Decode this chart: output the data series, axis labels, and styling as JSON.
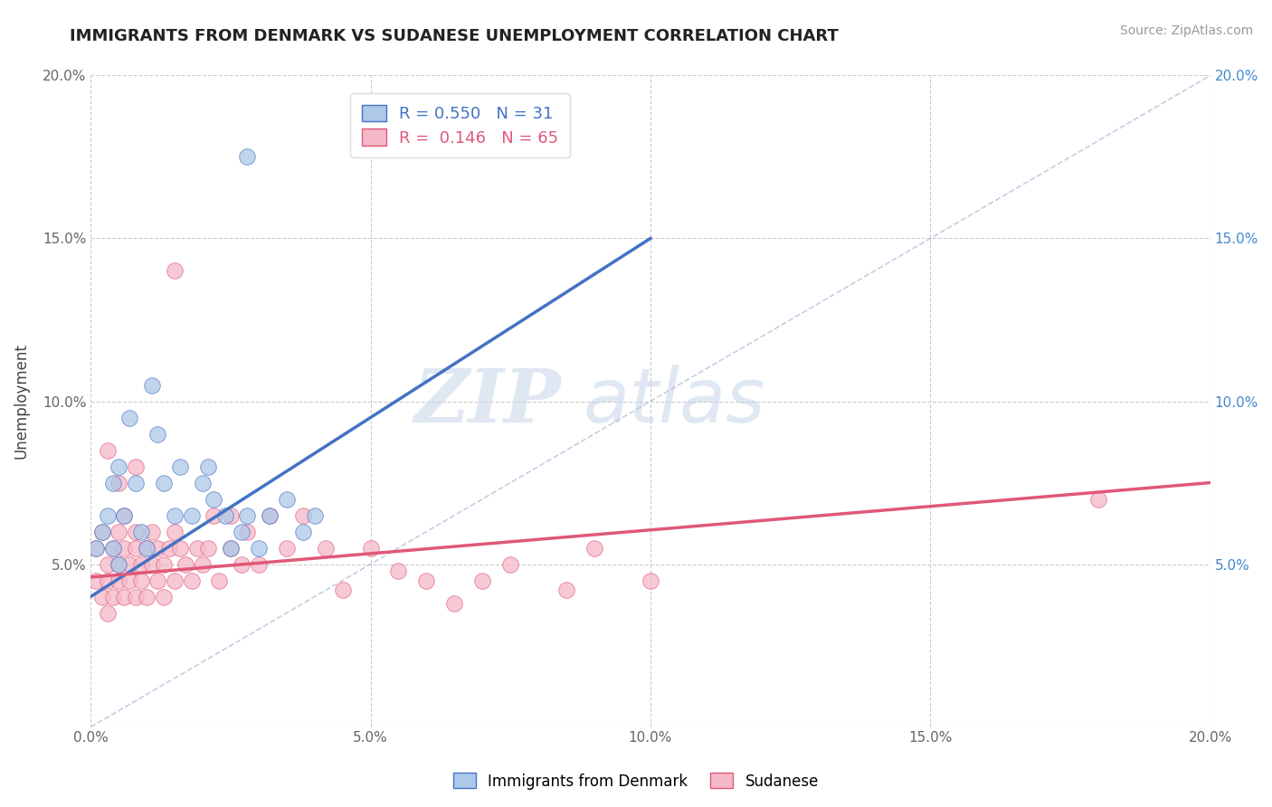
{
  "title": "IMMIGRANTS FROM DENMARK VS SUDANESE UNEMPLOYMENT CORRELATION CHART",
  "source": "Source: ZipAtlas.com",
  "ylabel": "Unemployment",
  "xlim": [
    0,
    0.2
  ],
  "ylim": [
    0,
    0.2
  ],
  "xticks": [
    0.0,
    0.05,
    0.1,
    0.15,
    0.2
  ],
  "yticks": [
    0.0,
    0.05,
    0.1,
    0.15,
    0.2
  ],
  "blue_R": "0.550",
  "blue_N": "31",
  "pink_R": "0.146",
  "pink_N": "65",
  "blue_color": "#adc8e8",
  "blue_line_color": "#4472c4",
  "pink_color": "#f5b8c8",
  "pink_line_color": "#e05878",
  "diag_color": "#b0b8d8",
  "watermark_zip": "ZIP",
  "watermark_atlas": "atlas",
  "blue_scatter_x": [
    0.001,
    0.002,
    0.003,
    0.004,
    0.004,
    0.005,
    0.005,
    0.006,
    0.007,
    0.008,
    0.009,
    0.01,
    0.011,
    0.012,
    0.013,
    0.015,
    0.016,
    0.018,
    0.02,
    0.021,
    0.022,
    0.024,
    0.025,
    0.027,
    0.028,
    0.03,
    0.032,
    0.035,
    0.038,
    0.04,
    0.028
  ],
  "blue_scatter_y": [
    0.055,
    0.06,
    0.065,
    0.055,
    0.075,
    0.05,
    0.08,
    0.065,
    0.095,
    0.075,
    0.06,
    0.055,
    0.105,
    0.09,
    0.075,
    0.065,
    0.08,
    0.065,
    0.075,
    0.08,
    0.07,
    0.065,
    0.055,
    0.06,
    0.065,
    0.055,
    0.065,
    0.07,
    0.06,
    0.065,
    0.175
  ],
  "pink_scatter_x": [
    0.001,
    0.001,
    0.002,
    0.002,
    0.003,
    0.003,
    0.003,
    0.004,
    0.004,
    0.005,
    0.005,
    0.005,
    0.006,
    0.006,
    0.006,
    0.007,
    0.007,
    0.008,
    0.008,
    0.008,
    0.009,
    0.009,
    0.01,
    0.01,
    0.011,
    0.011,
    0.012,
    0.012,
    0.013,
    0.013,
    0.014,
    0.015,
    0.015,
    0.016,
    0.017,
    0.018,
    0.019,
    0.02,
    0.021,
    0.022,
    0.023,
    0.025,
    0.027,
    0.028,
    0.03,
    0.032,
    0.035,
    0.038,
    0.042,
    0.045,
    0.05,
    0.055,
    0.06,
    0.065,
    0.07,
    0.075,
    0.085,
    0.09,
    0.1,
    0.18,
    0.003,
    0.005,
    0.008,
    0.015,
    0.025
  ],
  "pink_scatter_y": [
    0.055,
    0.045,
    0.06,
    0.04,
    0.05,
    0.045,
    0.035,
    0.055,
    0.04,
    0.05,
    0.045,
    0.06,
    0.055,
    0.04,
    0.065,
    0.05,
    0.045,
    0.055,
    0.04,
    0.06,
    0.05,
    0.045,
    0.055,
    0.04,
    0.05,
    0.06,
    0.045,
    0.055,
    0.04,
    0.05,
    0.055,
    0.045,
    0.06,
    0.055,
    0.05,
    0.045,
    0.055,
    0.05,
    0.055,
    0.065,
    0.045,
    0.055,
    0.05,
    0.06,
    0.05,
    0.065,
    0.055,
    0.065,
    0.055,
    0.042,
    0.055,
    0.048,
    0.045,
    0.038,
    0.045,
    0.05,
    0.042,
    0.055,
    0.045,
    0.07,
    0.085,
    0.075,
    0.08,
    0.14,
    0.065
  ],
  "blue_line_x0": 0.0,
  "blue_line_x1": 0.1,
  "blue_line_y0": 0.04,
  "blue_line_y1": 0.15,
  "pink_line_x0": 0.0,
  "pink_line_x1": 0.2,
  "pink_line_y0": 0.046,
  "pink_line_y1": 0.075
}
